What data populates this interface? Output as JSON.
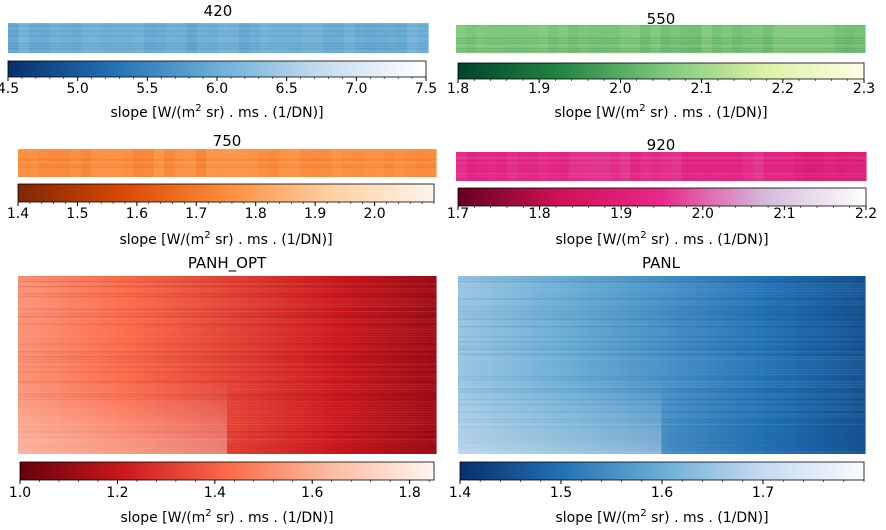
{
  "chart_data": [
    {
      "type": "heatmap",
      "title": "420",
      "colormap": "blues",
      "trend": "uniform",
      "colorbar": {
        "range": [
          4.5,
          7.5
        ],
        "ticks": [
          4.5,
          5.0,
          5.5,
          6.0,
          6.5,
          7.0,
          7.5
        ],
        "tick_labels": [
          "4.5",
          "5.0",
          "5.5",
          "6.0",
          "6.5",
          "7.0",
          "7.5"
        ],
        "label": "slope [W/(m² sr) . ms . (1/DN)]",
        "colors": [
          "#08306b",
          "#2171b5",
          "#6baed6",
          "#c6dbef",
          "#ffffff"
        ]
      }
    },
    {
      "type": "heatmap",
      "title": "550",
      "colormap": "greens",
      "trend": "uniform",
      "colorbar": {
        "range": [
          1.8,
          2.3
        ],
        "ticks": [
          1.8,
          1.9,
          2.0,
          2.1,
          2.2,
          2.3
        ],
        "tick_labels": [
          "1.8",
          "1.9",
          "2.0",
          "2.1",
          "2.2",
          "2.3"
        ],
        "label": "slope [W/(m² sr) . ms . (1/DN)]",
        "colors": [
          "#004529",
          "#238443",
          "#78c679",
          "#d9f0a3",
          "#ffffe5"
        ]
      }
    },
    {
      "type": "heatmap",
      "title": "750",
      "colormap": "oranges",
      "trend": "uniform",
      "colorbar": {
        "range": [
          1.4,
          2.1
        ],
        "ticks": [
          1.4,
          1.5,
          1.6,
          1.7,
          1.8,
          1.9,
          2.0
        ],
        "tick_labels": [
          "1.4",
          "1.5",
          "1.6",
          "1.7",
          "1.8",
          "1.9",
          "2.0"
        ],
        "label": "slope [W/(m² sr) . ms . (1/DN)]",
        "colors": [
          "#7f2704",
          "#d94801",
          "#fd8d3c",
          "#fdd0a2",
          "#fff5eb"
        ]
      }
    },
    {
      "type": "heatmap",
      "title": "920",
      "colormap": "pinks",
      "trend": "uniform",
      "colorbar": {
        "range": [
          1.7,
          2.2
        ],
        "ticks": [
          1.7,
          1.8,
          1.9,
          2.0,
          2.1,
          2.2
        ],
        "tick_labels": [
          "1.7",
          "1.8",
          "1.9",
          "2.0",
          "2.1",
          "2.2"
        ],
        "label": "slope [W/(m² sr) . ms . (1/DN)]",
        "colors": [
          "#67001f",
          "#ce1256",
          "#e7298a",
          "#d4b9da",
          "#ffffff"
        ]
      }
    },
    {
      "type": "heatmap",
      "title": "PANH_OPT",
      "colormap": "reds",
      "trend": "darker-right",
      "colorbar": {
        "range": [
          1.0,
          1.85
        ],
        "ticks": [
          1.0,
          1.2,
          1.4,
          1.6,
          1.8
        ],
        "tick_labels": [
          "1.0",
          "1.2",
          "1.4",
          "1.6",
          "1.8"
        ],
        "label": "slope [W/(m² sr) . ms . (1/DN)]",
        "colors": [
          "#67000d",
          "#cb181d",
          "#fb6a4a",
          "#fcbba1",
          "#fff5f0"
        ]
      }
    },
    {
      "type": "heatmap",
      "title": "PANL",
      "colormap": "blues",
      "trend": "darker-right",
      "colorbar": {
        "range": [
          1.4,
          1.8
        ],
        "ticks": [
          1.4,
          1.5,
          1.6,
          1.7
        ],
        "tick_labels": [
          "1.4",
          "1.5",
          "1.6",
          "1.7"
        ],
        "label": "slope [W/(m² sr) . ms . (1/DN)]",
        "colors": [
          "#08306b",
          "#2171b5",
          "#6baed6",
          "#c6dbef",
          "#f7fbff"
        ]
      }
    }
  ]
}
